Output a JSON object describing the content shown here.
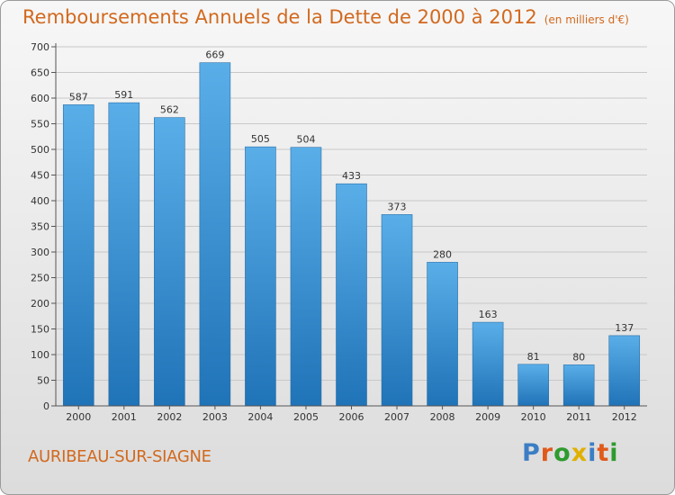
{
  "title": "Remboursements Annuels de la Dette de 2000 à 2012",
  "unit_note": "(en milliers d'€)",
  "commune": "AURIBEAU-SUR-SIAGNE",
  "logo": {
    "text": "Proxiti",
    "colors": [
      "#3b7ec4",
      "#e05a1a",
      "#2e9b2e",
      "#e0b000",
      "#3b7ec4",
      "#e05a1a",
      "#2e9b2e"
    ]
  },
  "colors": {
    "title": "#d2691e",
    "bar_top": "#5aaee8",
    "bar_bottom": "#1f73b7",
    "grid": "#c8c8c8"
  },
  "chart_data": {
    "type": "bar",
    "categories": [
      "2000",
      "2001",
      "2002",
      "2003",
      "2004",
      "2005",
      "2006",
      "2007",
      "2008",
      "2009",
      "2010",
      "2011",
      "2012"
    ],
    "values": [
      587,
      591,
      562,
      669,
      505,
      504,
      433,
      373,
      280,
      163,
      81,
      80,
      137
    ],
    "y_ticks": [
      0,
      50,
      100,
      150,
      200,
      250,
      300,
      350,
      400,
      450,
      500,
      550,
      600,
      650,
      700
    ],
    "ylim": [
      0,
      700
    ],
    "grid": true,
    "xlabel": "",
    "ylabel": ""
  }
}
